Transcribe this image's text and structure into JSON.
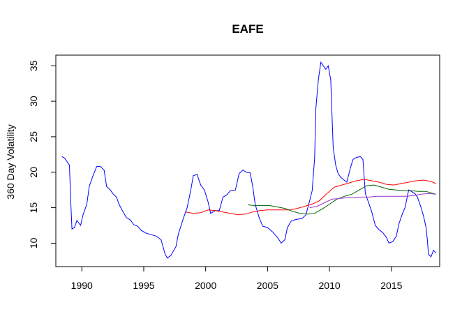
{
  "chart_data": {
    "type": "line",
    "title": "EAFE",
    "xlabel": "",
    "ylabel": "360 Day Volatility",
    "xlim": [
      1987.9,
      2018.9
    ],
    "ylim": [
      6.7,
      36.5
    ],
    "x_ticks": [
      1990,
      1995,
      2000,
      2005,
      2010,
      2015
    ],
    "y_ticks": [
      10,
      15,
      20,
      25,
      30,
      35
    ],
    "grid": false,
    "legend": "none",
    "series": [
      {
        "color": "#0000ff",
        "points": [
          [
            1988.4,
            22.2
          ],
          [
            1988.6,
            22.0
          ],
          [
            1988.8,
            21.5
          ],
          [
            1989.0,
            21.0
          ],
          [
            1989.1,
            16.0
          ],
          [
            1989.2,
            12.0
          ],
          [
            1989.4,
            12.2
          ],
          [
            1989.6,
            13.2
          ],
          [
            1989.9,
            12.5
          ],
          [
            1990.1,
            14.0
          ],
          [
            1990.4,
            15.5
          ],
          [
            1990.6,
            18.0
          ],
          [
            1990.9,
            19.5
          ],
          [
            1991.2,
            20.8
          ],
          [
            1991.5,
            20.8
          ],
          [
            1991.8,
            20.3
          ],
          [
            1992.0,
            18.0
          ],
          [
            1992.3,
            17.5
          ],
          [
            1992.5,
            17.0
          ],
          [
            1992.8,
            16.5
          ],
          [
            1993.0,
            15.5
          ],
          [
            1993.3,
            14.5
          ],
          [
            1993.6,
            13.6
          ],
          [
            1993.9,
            13.3
          ],
          [
            1994.2,
            12.6
          ],
          [
            1994.5,
            12.4
          ],
          [
            1994.8,
            11.8
          ],
          [
            1995.2,
            11.4
          ],
          [
            1995.6,
            11.2
          ],
          [
            1996.0,
            11.0
          ],
          [
            1996.4,
            10.5
          ],
          [
            1996.7,
            8.6
          ],
          [
            1996.9,
            7.9
          ],
          [
            1997.2,
            8.3
          ],
          [
            1997.6,
            9.5
          ],
          [
            1997.8,
            11.3
          ],
          [
            1998.2,
            13.5
          ],
          [
            1998.5,
            15.0
          ],
          [
            1998.8,
            17.5
          ],
          [
            1999.0,
            19.5
          ],
          [
            1999.3,
            19.7
          ],
          [
            1999.6,
            18.2
          ],
          [
            1999.9,
            17.5
          ],
          [
            2000.2,
            15.8
          ],
          [
            2000.4,
            14.2
          ],
          [
            2000.8,
            14.6
          ],
          [
            2001.1,
            14.6
          ],
          [
            2001.4,
            16.5
          ],
          [
            2001.7,
            16.8
          ],
          [
            2002.0,
            17.4
          ],
          [
            2002.4,
            17.5
          ],
          [
            2002.7,
            19.8
          ],
          [
            2003.0,
            20.3
          ],
          [
            2003.3,
            20.0
          ],
          [
            2003.6,
            19.9
          ],
          [
            2003.8,
            18.0
          ],
          [
            2004.0,
            15.5
          ],
          [
            2004.3,
            13.7
          ],
          [
            2004.6,
            12.4
          ],
          [
            2005.0,
            12.2
          ],
          [
            2005.4,
            11.6
          ],
          [
            2005.8,
            10.8
          ],
          [
            2006.1,
            10.0
          ],
          [
            2006.4,
            10.5
          ],
          [
            2006.6,
            12.2
          ],
          [
            2006.9,
            13.1
          ],
          [
            2007.2,
            13.3
          ],
          [
            2007.5,
            13.4
          ],
          [
            2007.8,
            13.5
          ],
          [
            2008.1,
            14.0
          ],
          [
            2008.4,
            16.0
          ],
          [
            2008.6,
            17.4
          ],
          [
            2008.8,
            22.0
          ],
          [
            2008.9,
            29.0
          ],
          [
            2009.1,
            33.0
          ],
          [
            2009.3,
            35.5
          ],
          [
            2009.5,
            35.0
          ],
          [
            2009.7,
            34.5
          ],
          [
            2009.9,
            35.0
          ],
          [
            2010.1,
            33.0
          ],
          [
            2010.3,
            23.5
          ],
          [
            2010.5,
            21.0
          ],
          [
            2010.7,
            19.8
          ],
          [
            2010.9,
            19.3
          ],
          [
            2011.1,
            19.0
          ],
          [
            2011.4,
            18.6
          ],
          [
            2011.7,
            20.7
          ],
          [
            2011.9,
            21.8
          ],
          [
            2012.2,
            22.1
          ],
          [
            2012.5,
            22.2
          ],
          [
            2012.7,
            21.8
          ],
          [
            2012.9,
            17.0
          ],
          [
            2013.1,
            16.0
          ],
          [
            2013.4,
            14.5
          ],
          [
            2013.7,
            12.5
          ],
          [
            2014.0,
            11.9
          ],
          [
            2014.3,
            11.5
          ],
          [
            2014.6,
            10.8
          ],
          [
            2014.8,
            10.0
          ],
          [
            2015.1,
            10.2
          ],
          [
            2015.4,
            11.0
          ],
          [
            2015.6,
            12.7
          ],
          [
            2015.9,
            14.2
          ],
          [
            2016.1,
            15.0
          ],
          [
            2016.4,
            17.5
          ],
          [
            2016.6,
            17.3
          ],
          [
            2016.9,
            17.0
          ],
          [
            2017.1,
            16.5
          ],
          [
            2017.4,
            15.0
          ],
          [
            2017.6,
            13.8
          ],
          [
            2017.8,
            12.2
          ],
          [
            2017.9,
            10.5
          ],
          [
            2018.0,
            8.4
          ],
          [
            2018.2,
            8.1
          ],
          [
            2018.4,
            9.0
          ],
          [
            2018.6,
            8.6
          ]
        ]
      },
      {
        "color": "#ff0000",
        "points": [
          [
            1998.4,
            14.4
          ],
          [
            1999.0,
            14.2
          ],
          [
            1999.6,
            14.3
          ],
          [
            2000.2,
            14.7
          ],
          [
            2000.8,
            14.6
          ],
          [
            2001.4,
            14.4
          ],
          [
            2002.0,
            14.2
          ],
          [
            2002.6,
            14.0
          ],
          [
            2003.2,
            14.1
          ],
          [
            2003.8,
            14.4
          ],
          [
            2004.4,
            14.6
          ],
          [
            2005.0,
            14.7
          ],
          [
            2005.6,
            14.7
          ],
          [
            2006.2,
            14.7
          ],
          [
            2006.8,
            14.7
          ],
          [
            2007.4,
            14.9
          ],
          [
            2008.0,
            15.2
          ],
          [
            2008.6,
            15.5
          ],
          [
            2009.2,
            16.0
          ],
          [
            2009.8,
            17.0
          ],
          [
            2010.4,
            17.9
          ],
          [
            2011.0,
            18.2
          ],
          [
            2011.6,
            18.5
          ],
          [
            2012.2,
            18.8
          ],
          [
            2012.8,
            19.0
          ],
          [
            2013.4,
            18.8
          ],
          [
            2014.0,
            18.6
          ],
          [
            2014.6,
            18.3
          ],
          [
            2015.2,
            18.2
          ],
          [
            2015.8,
            18.4
          ],
          [
            2016.4,
            18.6
          ],
          [
            2017.0,
            18.8
          ],
          [
            2017.6,
            18.9
          ],
          [
            2018.2,
            18.7
          ],
          [
            2018.6,
            18.4
          ]
        ]
      },
      {
        "color": "#006400",
        "points": [
          [
            2003.4,
            15.4
          ],
          [
            2004.0,
            15.3
          ],
          [
            2004.6,
            15.3
          ],
          [
            2005.2,
            15.3
          ],
          [
            2005.8,
            15.1
          ],
          [
            2006.4,
            14.9
          ],
          [
            2007.0,
            14.5
          ],
          [
            2007.6,
            14.2
          ],
          [
            2008.2,
            14.1
          ],
          [
            2008.8,
            14.2
          ],
          [
            2009.4,
            14.8
          ],
          [
            2010.0,
            15.5
          ],
          [
            2010.6,
            16.2
          ],
          [
            2011.2,
            16.6
          ],
          [
            2011.8,
            16.9
          ],
          [
            2012.4,
            17.5
          ],
          [
            2013.0,
            18.1
          ],
          [
            2013.6,
            18.2
          ],
          [
            2014.2,
            17.9
          ],
          [
            2014.8,
            17.6
          ],
          [
            2015.4,
            17.5
          ],
          [
            2016.0,
            17.4
          ],
          [
            2016.6,
            17.4
          ],
          [
            2017.2,
            17.3
          ],
          [
            2017.8,
            17.3
          ],
          [
            2018.2,
            17.1
          ],
          [
            2018.6,
            16.9
          ]
        ]
      },
      {
        "color": "#9932cc",
        "points": [
          [
            2008.4,
            15.0
          ],
          [
            2009.0,
            15.2
          ],
          [
            2009.6,
            15.7
          ],
          [
            2010.2,
            16.2
          ],
          [
            2010.8,
            16.3
          ],
          [
            2011.4,
            16.4
          ],
          [
            2012.0,
            16.4
          ],
          [
            2012.6,
            16.5
          ],
          [
            2013.2,
            16.5
          ],
          [
            2013.8,
            16.6
          ],
          [
            2014.4,
            16.6
          ],
          [
            2015.0,
            16.6
          ],
          [
            2015.6,
            16.6
          ],
          [
            2016.2,
            16.6
          ],
          [
            2016.8,
            16.7
          ],
          [
            2017.4,
            16.9
          ],
          [
            2018.0,
            17.0
          ],
          [
            2018.6,
            16.9
          ]
        ]
      }
    ]
  }
}
